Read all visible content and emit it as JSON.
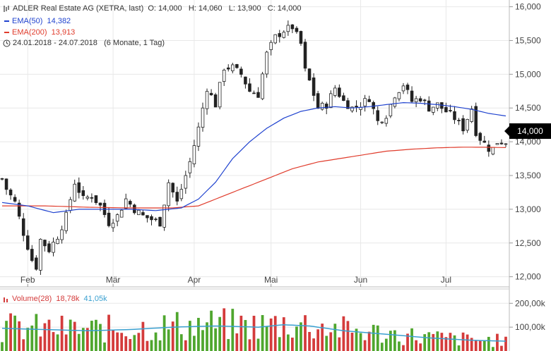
{
  "header": {
    "title": "ADLER Real Estate AG (XETRA, last)",
    "ohlc": "O: 14,000   H: 14,060   L: 13,900   C: 14,000",
    "ema50_label": "EMA(50)",
    "ema50_value": "14,382",
    "ema200_label": "EMA(200)",
    "ema200_value": "13,913",
    "range_text": "24.01.2018 - 24.07.2018",
    "range_detail": "(6 Monate, 1 Tag)"
  },
  "volume_header": {
    "label": "Volume(28)",
    "value1": "18,78k",
    "value2": "41,05k"
  },
  "price_badge": "14,000",
  "colors": {
    "up": "#4fa62e",
    "down": "#d43b3b",
    "ema50": "#2043cf",
    "ema200": "#e03c2c",
    "vol_ma": "#3aa0d0",
    "grid": "#e8e8e8"
  },
  "icons": [
    "ohlc-bars-icon",
    "clock-icon",
    "volume-bars-icon"
  ],
  "chart_data": {
    "type": "candlestick",
    "price_axis": {
      "ylim": [
        11850,
        16100
      ],
      "ticks": [
        12000,
        12500,
        13000,
        13500,
        14000,
        14500,
        15000,
        15500,
        16000
      ],
      "tick_labels": [
        "12,000",
        "12,500",
        "13,000",
        "13,500",
        "14,000",
        "14,500",
        "15,000",
        "15,500",
        "16,000"
      ]
    },
    "x_axis": {
      "months": [
        {
          "label": "Feb",
          "index": 6
        },
        {
          "label": "Mär",
          "index": 26
        },
        {
          "label": "Apr",
          "index": 45
        },
        {
          "label": "Mai",
          "index": 63
        },
        {
          "label": "Jun",
          "index": 84
        },
        {
          "label": "Jul",
          "index": 104
        }
      ]
    },
    "close_path": [
      [
        0,
        13450
      ],
      [
        1,
        13300
      ],
      [
        3,
        13100
      ],
      [
        5,
        12650
      ],
      [
        7,
        12250
      ],
      [
        8,
        12150
      ],
      [
        9,
        12550
      ],
      [
        11,
        12400
      ],
      [
        13,
        12600
      ],
      [
        15,
        12900
      ],
      [
        17,
        13400
      ],
      [
        19,
        13150
      ],
      [
        21,
        13200
      ],
      [
        23,
        13050
      ],
      [
        25,
        12800
      ],
      [
        27,
        12900
      ],
      [
        29,
        13150
      ],
      [
        31,
        13000
      ],
      [
        33,
        12900
      ],
      [
        35,
        12850
      ],
      [
        37,
        12800
      ],
      [
        39,
        13400
      ],
      [
        41,
        13100
      ],
      [
        42,
        13300
      ],
      [
        44,
        13700
      ],
      [
        46,
        14200
      ],
      [
        48,
        14800
      ],
      [
        50,
        14550
      ],
      [
        52,
        15100
      ],
      [
        54,
        15100
      ],
      [
        56,
        15000
      ],
      [
        58,
        14750
      ],
      [
        60,
        14700
      ],
      [
        62,
        15300
      ],
      [
        64,
        15550
      ],
      [
        66,
        15650
      ],
      [
        68,
        15700
      ],
      [
        70,
        15450
      ],
      [
        71,
        15050
      ],
      [
        72,
        14900
      ],
      [
        74,
        14500
      ],
      [
        76,
        14550
      ],
      [
        78,
        14800
      ],
      [
        80,
        14600
      ],
      [
        82,
        14500
      ],
      [
        84,
        14550
      ],
      [
        86,
        14650
      ],
      [
        88,
        14300
      ],
      [
        90,
        14400
      ],
      [
        92,
        14700
      ],
      [
        94,
        14850
      ],
      [
        96,
        14600
      ],
      [
        98,
        14650
      ],
      [
        100,
        14500
      ],
      [
        102,
        14550
      ],
      [
        104,
        14450
      ],
      [
        106,
        14350
      ],
      [
        108,
        14200
      ],
      [
        110,
        14500
      ],
      [
        111,
        14150
      ],
      [
        112,
        14050
      ],
      [
        114,
        13900
      ],
      [
        115,
        13900
      ],
      [
        116,
        14000
      ],
      [
        118,
        14000
      ]
    ],
    "ema50": [
      [
        0,
        13100
      ],
      [
        6,
        13050
      ],
      [
        12,
        12950
      ],
      [
        18,
        13000
      ],
      [
        24,
        13000
      ],
      [
        30,
        13000
      ],
      [
        36,
        12980
      ],
      [
        42,
        13020
      ],
      [
        46,
        13150
      ],
      [
        50,
        13400
      ],
      [
        54,
        13750
      ],
      [
        58,
        14000
      ],
      [
        62,
        14200
      ],
      [
        66,
        14350
      ],
      [
        70,
        14450
      ],
      [
        74,
        14500
      ],
      [
        78,
        14520
      ],
      [
        82,
        14500
      ],
      [
        86,
        14520
      ],
      [
        90,
        14550
      ],
      [
        94,
        14580
      ],
      [
        98,
        14570
      ],
      [
        102,
        14550
      ],
      [
        106,
        14520
      ],
      [
        110,
        14480
      ],
      [
        114,
        14420
      ],
      [
        118,
        14382
      ]
    ],
    "ema200": [
      [
        0,
        13050
      ],
      [
        10,
        13050
      ],
      [
        20,
        13030
      ],
      [
        30,
        13020
      ],
      [
        40,
        13020
      ],
      [
        46,
        13050
      ],
      [
        50,
        13150
      ],
      [
        56,
        13300
      ],
      [
        62,
        13450
      ],
      [
        68,
        13600
      ],
      [
        74,
        13700
      ],
      [
        80,
        13760
      ],
      [
        86,
        13820
      ],
      [
        90,
        13860
      ],
      [
        96,
        13890
      ],
      [
        102,
        13910
      ],
      [
        108,
        13920
      ],
      [
        114,
        13918
      ],
      [
        118,
        13913
      ]
    ],
    "volume_axis": {
      "ylim": [
        0,
        260000
      ],
      "ticks": [
        100000,
        200000
      ],
      "tick_labels": [
        "100,00k",
        "200,00k"
      ]
    },
    "volume_ma": [
      [
        0,
        95000
      ],
      [
        10,
        90000
      ],
      [
        20,
        85000
      ],
      [
        30,
        90000
      ],
      [
        40,
        100000
      ],
      [
        50,
        105000
      ],
      [
        60,
        100000
      ],
      [
        66,
        110000
      ],
      [
        72,
        105000
      ],
      [
        80,
        85000
      ],
      [
        90,
        70000
      ],
      [
        100,
        55000
      ],
      [
        110,
        45000
      ],
      [
        118,
        41050
      ]
    ],
    "n_bars": 119
  }
}
